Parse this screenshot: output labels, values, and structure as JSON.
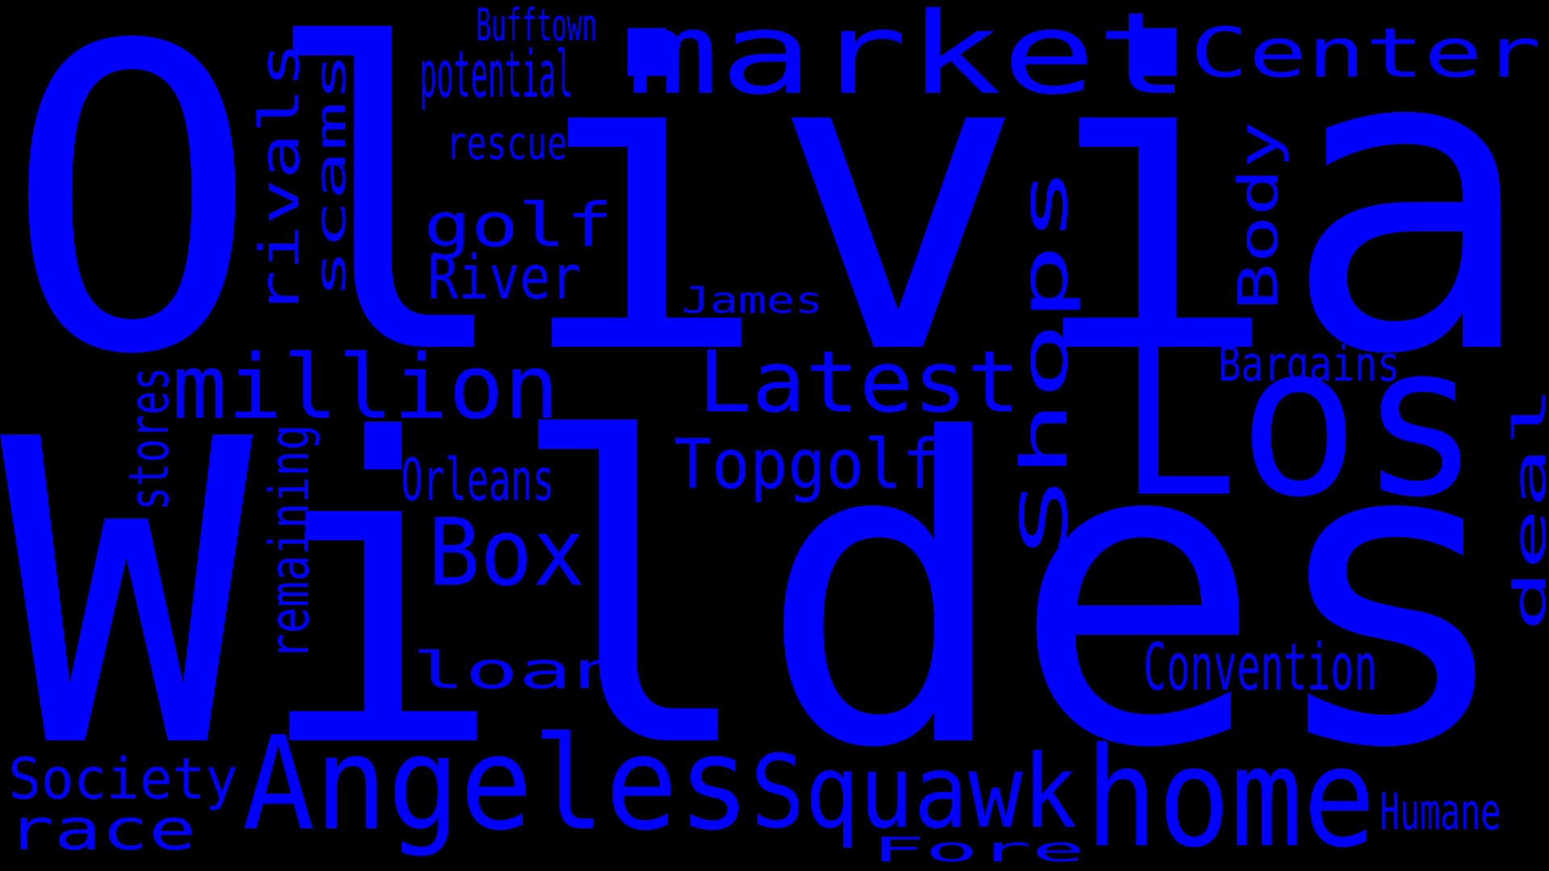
{
  "colors": {
    "background": "#000000",
    "text": "#0000ff"
  },
  "words": [
    "Olivia",
    "Wildes",
    "Los",
    "Angeles",
    "home",
    "Squawk",
    "market",
    "million",
    "Latest",
    "Box",
    "Topgolf",
    "Convention",
    "Center",
    "potential",
    "golf",
    "River",
    "loan",
    "Orleans",
    "Bargains",
    "Humane",
    "Society",
    "race",
    "Fore",
    "James",
    "rescue",
    "Bufftown",
    "Shops",
    "rivals",
    "scams",
    "remaining",
    "stores",
    "Body",
    "deal"
  ]
}
